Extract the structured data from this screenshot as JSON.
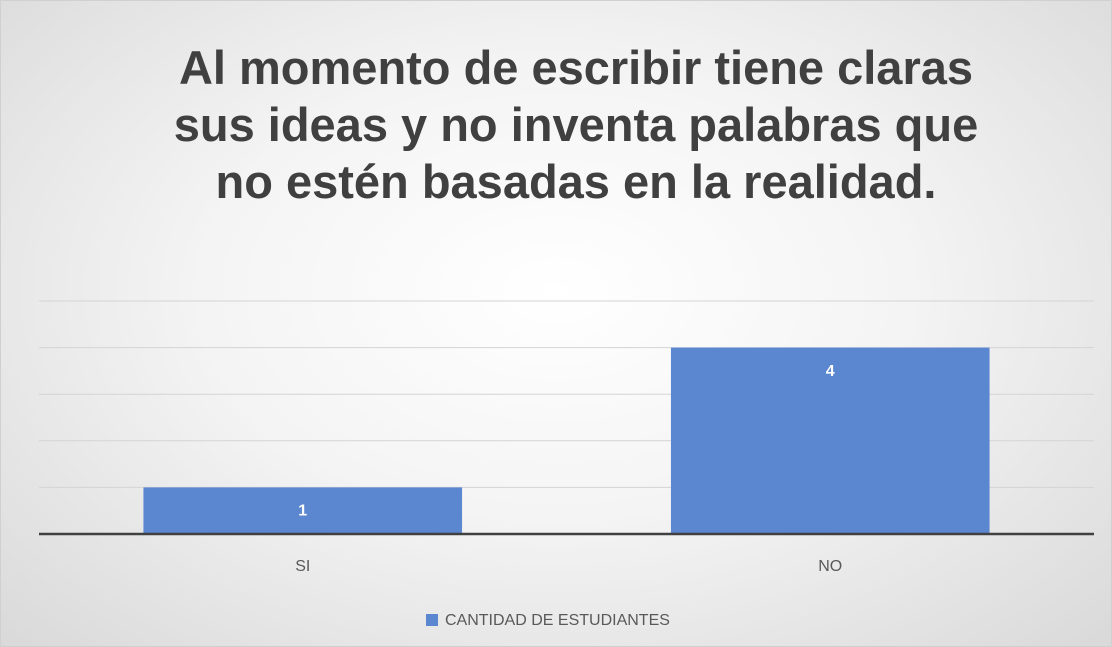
{
  "chart_data": {
    "type": "bar",
    "title": "Al momento de escribir tiene claras sus ideas y no inventa palabras que no estén basadas en la realidad.",
    "categories": [
      "SI",
      "NO"
    ],
    "series": [
      {
        "name": "CANTIDAD DE ESTUDIANTES",
        "color": "#5b86d0",
        "values": [
          1,
          4
        ]
      }
    ],
    "ylim": [
      0,
      5
    ],
    "yticks": [
      0,
      1,
      2,
      3,
      4,
      5
    ],
    "grid": true,
    "legend": "bottom",
    "data_labels": true
  }
}
